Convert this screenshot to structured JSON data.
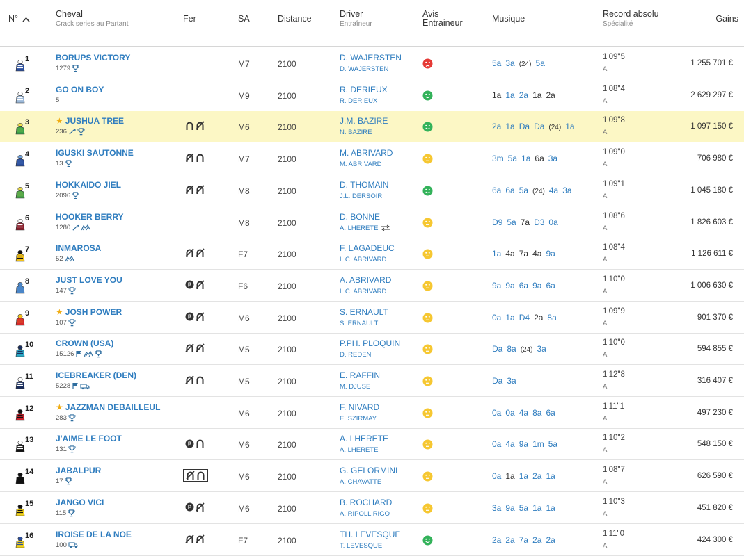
{
  "header": {
    "num": "N°",
    "cheval": "Cheval",
    "cheval_sub": "Crack series au Partant",
    "fer": "Fer",
    "sa": "SA",
    "distance": "Distance",
    "driver": "Driver",
    "driver_sub": "Entraîneur",
    "avis1": "Avis",
    "avis2": "Entraineur",
    "musique": "Musique",
    "record": "Record absolu",
    "record_sub": "Spécialité",
    "gains": "Gains"
  },
  "colors": {
    "accent": "#2f7dbf",
    "highlight": "#fcf7c5",
    "face_red": "#e53935",
    "face_green": "#33b25a",
    "face_yellow": "#f6c731",
    "star": "#f0ad14"
  },
  "rows": [
    {
      "num": "1",
      "name": "BORUPS VICTORY",
      "star": false,
      "crack": "1279",
      "crack_icons": [
        "trophy"
      ],
      "fer": [],
      "fer_boxed": false,
      "sa": "M7",
      "dist": "2100",
      "driver": "D. WAJERSTEN",
      "trainer": "D. WAJERSTEN",
      "swap": false,
      "avis": "red",
      "musique": [
        [
          "5a",
          "b"
        ],
        [
          "3a",
          "b"
        ],
        [
          "(24)",
          "y"
        ],
        [
          "5a",
          "b"
        ]
      ],
      "record": "1'09\"5",
      "spec": "A",
      "gains": "1 255 701 €",
      "silk": [
        "#2c4f9e",
        "#ffffff"
      ],
      "hl": false
    },
    {
      "num": "2",
      "name": "GO ON BOY",
      "star": false,
      "crack": "5",
      "crack_icons": [],
      "fer": [],
      "fer_boxed": false,
      "sa": "M9",
      "dist": "2100",
      "driver": "R. DERIEUX",
      "trainer": "R. DERIEUX",
      "swap": false,
      "avis": "green",
      "musique": [
        [
          "1a",
          "k"
        ],
        [
          "1a",
          "b"
        ],
        [
          "2a",
          "b"
        ],
        [
          "1a",
          "k"
        ],
        [
          "2a",
          "k"
        ]
      ],
      "record": "1'08\"4",
      "spec": "A",
      "gains": "2 629 297 €",
      "silk": [
        "#9bb8d8",
        "#ffffff"
      ],
      "hl": false
    },
    {
      "num": "3",
      "name": "JUSHUA TREE",
      "star": true,
      "crack": "236",
      "crack_icons": [
        "whip",
        "trophy"
      ],
      "fer": [
        "shoe",
        "crossed"
      ],
      "fer_boxed": false,
      "sa": "M6",
      "dist": "2100",
      "driver": "J.M. BAZIRE",
      "trainer": "N. BAZIRE",
      "swap": false,
      "avis": "green",
      "musique": [
        [
          "2a",
          "b"
        ],
        [
          "1a",
          "b"
        ],
        [
          "Da",
          "b"
        ],
        [
          "Da",
          "b"
        ],
        [
          "(24)",
          "y"
        ],
        [
          "1a",
          "b"
        ]
      ],
      "record": "1'09\"8",
      "spec": "A",
      "gains": "1 097 150 €",
      "silk": [
        "#3aa14a",
        "#f2e24a"
      ],
      "hl": true
    },
    {
      "num": "4",
      "name": "IGUSKI SAUTONNE",
      "star": false,
      "crack": "13",
      "crack_icons": [
        "trophy"
      ],
      "fer": [
        "crossed",
        "shoe"
      ],
      "fer_boxed": false,
      "sa": "M7",
      "dist": "2100",
      "driver": "M. ABRIVARD",
      "trainer": "M. ABRIVARD",
      "swap": false,
      "avis": "yellow",
      "musique": [
        [
          "3m",
          "b"
        ],
        [
          "5a",
          "b"
        ],
        [
          "1a",
          "b"
        ],
        [
          "6a",
          "k"
        ],
        [
          "3a",
          "b"
        ]
      ],
      "record": "1'09\"0",
      "spec": "A",
      "gains": "706 980 €",
      "silk": [
        "#2c4f9e",
        "#6fa0d8"
      ],
      "hl": false
    },
    {
      "num": "5",
      "name": "HOKKAIDO JIEL",
      "star": false,
      "crack": "2096",
      "crack_icons": [
        "trophy"
      ],
      "fer": [
        "crossed",
        "crossed"
      ],
      "fer_boxed": false,
      "sa": "M8",
      "dist": "2100",
      "driver": "D. THOMAIN",
      "trainer": "J.L. DERSOIR",
      "swap": false,
      "avis": "green",
      "musique": [
        [
          "6a",
          "b"
        ],
        [
          "6a",
          "b"
        ],
        [
          "5a",
          "b"
        ],
        [
          "(24)",
          "y"
        ],
        [
          "4a",
          "b"
        ],
        [
          "3a",
          "b"
        ]
      ],
      "record": "1'09\"1",
      "spec": "A",
      "gains": "1 045 180 €",
      "silk": [
        "#4aa34a",
        "#e9d84a"
      ],
      "hl": false
    },
    {
      "num": "6",
      "name": "HOOKER BERRY",
      "star": false,
      "crack": "1280",
      "crack_icons": [
        "whip",
        "horses"
      ],
      "fer": [],
      "fer_boxed": false,
      "sa": "M8",
      "dist": "2100",
      "driver": "D. BONNE",
      "trainer": "A. LHERETE",
      "swap": true,
      "avis": "yellow",
      "musique": [
        [
          "D9",
          "b"
        ],
        [
          "5a",
          "b"
        ],
        [
          "7a",
          "k"
        ],
        [
          "D3",
          "b"
        ],
        [
          "0a",
          "b"
        ]
      ],
      "record": "1'08\"6",
      "spec": "A",
      "gains": "1 826 603 €",
      "silk": [
        "#8a1f2c",
        "#ffffff"
      ],
      "hl": false
    },
    {
      "num": "7",
      "name": "INMAROSA",
      "star": false,
      "crack": "52",
      "crack_icons": [
        "horses"
      ],
      "fer": [
        "crossed",
        "crossed"
      ],
      "fer_boxed": false,
      "sa": "F7",
      "dist": "2100",
      "driver": "F. LAGADEUC",
      "trainer": "L.C. ABRIVARD",
      "swap": false,
      "avis": "yellow",
      "musique": [
        [
          "1a",
          "b"
        ],
        [
          "4a",
          "k"
        ],
        [
          "7a",
          "k"
        ],
        [
          "4a",
          "k"
        ],
        [
          "9a",
          "b"
        ]
      ],
      "record": "1'08\"4",
      "spec": "A",
      "gains": "1 126 611 €",
      "silk": [
        "#f2c21a",
        "#111111"
      ],
      "hl": false
    },
    {
      "num": "8",
      "name": "JUST LOVE YOU",
      "star": false,
      "crack": "147",
      "crack_icons": [
        "trophy"
      ],
      "fer": [
        "plate",
        "crossed"
      ],
      "fer_boxed": false,
      "sa": "F6",
      "dist": "2100",
      "driver": "A. ABRIVARD",
      "trainer": "L.C. ABRIVARD",
      "swap": false,
      "avis": "yellow",
      "musique": [
        [
          "9a",
          "b"
        ],
        [
          "9a",
          "b"
        ],
        [
          "6a",
          "b"
        ],
        [
          "9a",
          "b"
        ],
        [
          "6a",
          "b"
        ]
      ],
      "record": "1'10\"0",
      "spec": "A",
      "gains": "1 006 630 €",
      "silk": [
        "#4a86c8",
        "#4a86c8"
      ],
      "hl": false
    },
    {
      "num": "9",
      "name": "JOSH POWER",
      "star": true,
      "crack": "107",
      "crack_icons": [
        "trophy"
      ],
      "fer": [
        "plate",
        "crossed"
      ],
      "fer_boxed": false,
      "sa": "M6",
      "dist": "2100",
      "driver": "S. ERNAULT",
      "trainer": "S. ERNAULT",
      "swap": false,
      "avis": "yellow",
      "musique": [
        [
          "0a",
          "b"
        ],
        [
          "1a",
          "b"
        ],
        [
          "D4",
          "b"
        ],
        [
          "2a",
          "k"
        ],
        [
          "8a",
          "b"
        ]
      ],
      "record": "1'09\"9",
      "spec": "A",
      "gains": "901 370 €",
      "silk": [
        "#d42a2a",
        "#f2c21a"
      ],
      "hl": false
    },
    {
      "num": "10",
      "name": "CROWN (USA)",
      "star": false,
      "crack": "15126",
      "crack_icons": [
        "flag",
        "horses",
        "trophy"
      ],
      "fer": [
        "crossed",
        "crossed"
      ],
      "fer_boxed": false,
      "sa": "M5",
      "dist": "2100",
      "driver": "P.PH. PLOQUIN",
      "trainer": "D. REDEN",
      "swap": false,
      "avis": "yellow",
      "musique": [
        [
          "Da",
          "b"
        ],
        [
          "8a",
          "b"
        ],
        [
          "(24)",
          "y"
        ],
        [
          "3a",
          "b"
        ]
      ],
      "record": "1'10\"0",
      "spec": "A",
      "gains": "594 855 €",
      "silk": [
        "#2aa7c4",
        "#1a2e5e"
      ],
      "hl": false
    },
    {
      "num": "11",
      "name": "ICEBREAKER (DEN)",
      "star": false,
      "crack": "5228",
      "crack_icons": [
        "flag",
        "truck"
      ],
      "fer": [
        "crossed",
        "shoe"
      ],
      "fer_boxed": false,
      "sa": "M5",
      "dist": "2100",
      "driver": "E. RAFFIN",
      "trainer": "M. DJUSE",
      "swap": false,
      "avis": "yellow",
      "musique": [
        [
          "Da",
          "b"
        ],
        [
          "3a",
          "b"
        ]
      ],
      "record": "1'12\"8",
      "spec": "A",
      "gains": "316 407 €",
      "silk": [
        "#1a2e5e",
        "#ffffff"
      ],
      "hl": false
    },
    {
      "num": "12",
      "name": "JAZZMAN DEBAILLEUL",
      "star": true,
      "crack": "283",
      "crack_icons": [
        "trophy"
      ],
      "fer": [],
      "fer_boxed": false,
      "sa": "M6",
      "dist": "2100",
      "driver": "F. NIVARD",
      "trainer": "E. SZIRMAY",
      "swap": false,
      "avis": "yellow",
      "musique": [
        [
          "0a",
          "b"
        ],
        [
          "0a",
          "b"
        ],
        [
          "4a",
          "b"
        ],
        [
          "8a",
          "b"
        ],
        [
          "6a",
          "b"
        ]
      ],
      "record": "1'11\"1",
      "spec": "A",
      "gains": "497 230 €",
      "silk": [
        "#c8202a",
        "#111111"
      ],
      "hl": false
    },
    {
      "num": "13",
      "name": "J'AIME LE FOOT",
      "star": false,
      "crack": "131",
      "crack_icons": [
        "trophy"
      ],
      "fer": [
        "plate",
        "shoe"
      ],
      "fer_boxed": false,
      "sa": "M6",
      "dist": "2100",
      "driver": "A. LHERETE",
      "trainer": "A. LHERETE",
      "swap": false,
      "avis": "yellow",
      "musique": [
        [
          "0a",
          "b"
        ],
        [
          "4a",
          "b"
        ],
        [
          "9a",
          "b"
        ],
        [
          "1m",
          "b"
        ],
        [
          "5a",
          "b"
        ]
      ],
      "record": "1'10\"2",
      "spec": "A",
      "gains": "548 150 €",
      "silk": [
        "#111111",
        "#ffffff"
      ],
      "hl": false
    },
    {
      "num": "14",
      "name": "JABALPUR",
      "star": false,
      "crack": "17",
      "crack_icons": [
        "trophy"
      ],
      "fer": [
        "crossed",
        "shoe"
      ],
      "fer_boxed": true,
      "sa": "M6",
      "dist": "2100",
      "driver": "G. GELORMINI",
      "trainer": "A. CHAVATTE",
      "swap": false,
      "avis": "yellow",
      "musique": [
        [
          "0a",
          "b"
        ],
        [
          "1a",
          "k"
        ],
        [
          "1a",
          "b"
        ],
        [
          "2a",
          "b"
        ],
        [
          "1a",
          "b"
        ]
      ],
      "record": "1'08\"7",
      "spec": "A",
      "gains": "626 590 €",
      "silk": [
        "#111111",
        "#111111"
      ],
      "hl": false
    },
    {
      "num": "15",
      "name": "JANGO VICI",
      "star": false,
      "crack": "115",
      "crack_icons": [
        "trophy"
      ],
      "fer": [
        "plate",
        "crossed"
      ],
      "fer_boxed": false,
      "sa": "M6",
      "dist": "2100",
      "driver": "B. ROCHARD",
      "trainer": "A. RIPOLL RIGO",
      "swap": false,
      "avis": "yellow",
      "musique": [
        [
          "3a",
          "b"
        ],
        [
          "9a",
          "b"
        ],
        [
          "5a",
          "b"
        ],
        [
          "1a",
          "b"
        ],
        [
          "1a",
          "b"
        ]
      ],
      "record": "1'10\"3",
      "spec": "A",
      "gains": "451 820 €",
      "silk": [
        "#f2d21a",
        "#111111"
      ],
      "hl": false
    },
    {
      "num": "16",
      "name": "IROISE DE LA NOE",
      "star": false,
      "crack": "100",
      "crack_icons": [
        "truck"
      ],
      "fer": [
        "crossed",
        "crossed"
      ],
      "fer_boxed": false,
      "sa": "F7",
      "dist": "2100",
      "driver": "TH. LEVESQUE",
      "trainer": "T. LEVESQUE",
      "swap": false,
      "avis": "green",
      "musique": [
        [
          "2a",
          "b"
        ],
        [
          "2a",
          "b"
        ],
        [
          "7a",
          "b"
        ],
        [
          "2a",
          "b"
        ],
        [
          "2a",
          "b"
        ]
      ],
      "record": "1'11\"0",
      "spec": "A",
      "gains": "424 300 €",
      "silk": [
        "#f2d21a",
        "#2c4f9e"
      ],
      "hl": false
    }
  ]
}
